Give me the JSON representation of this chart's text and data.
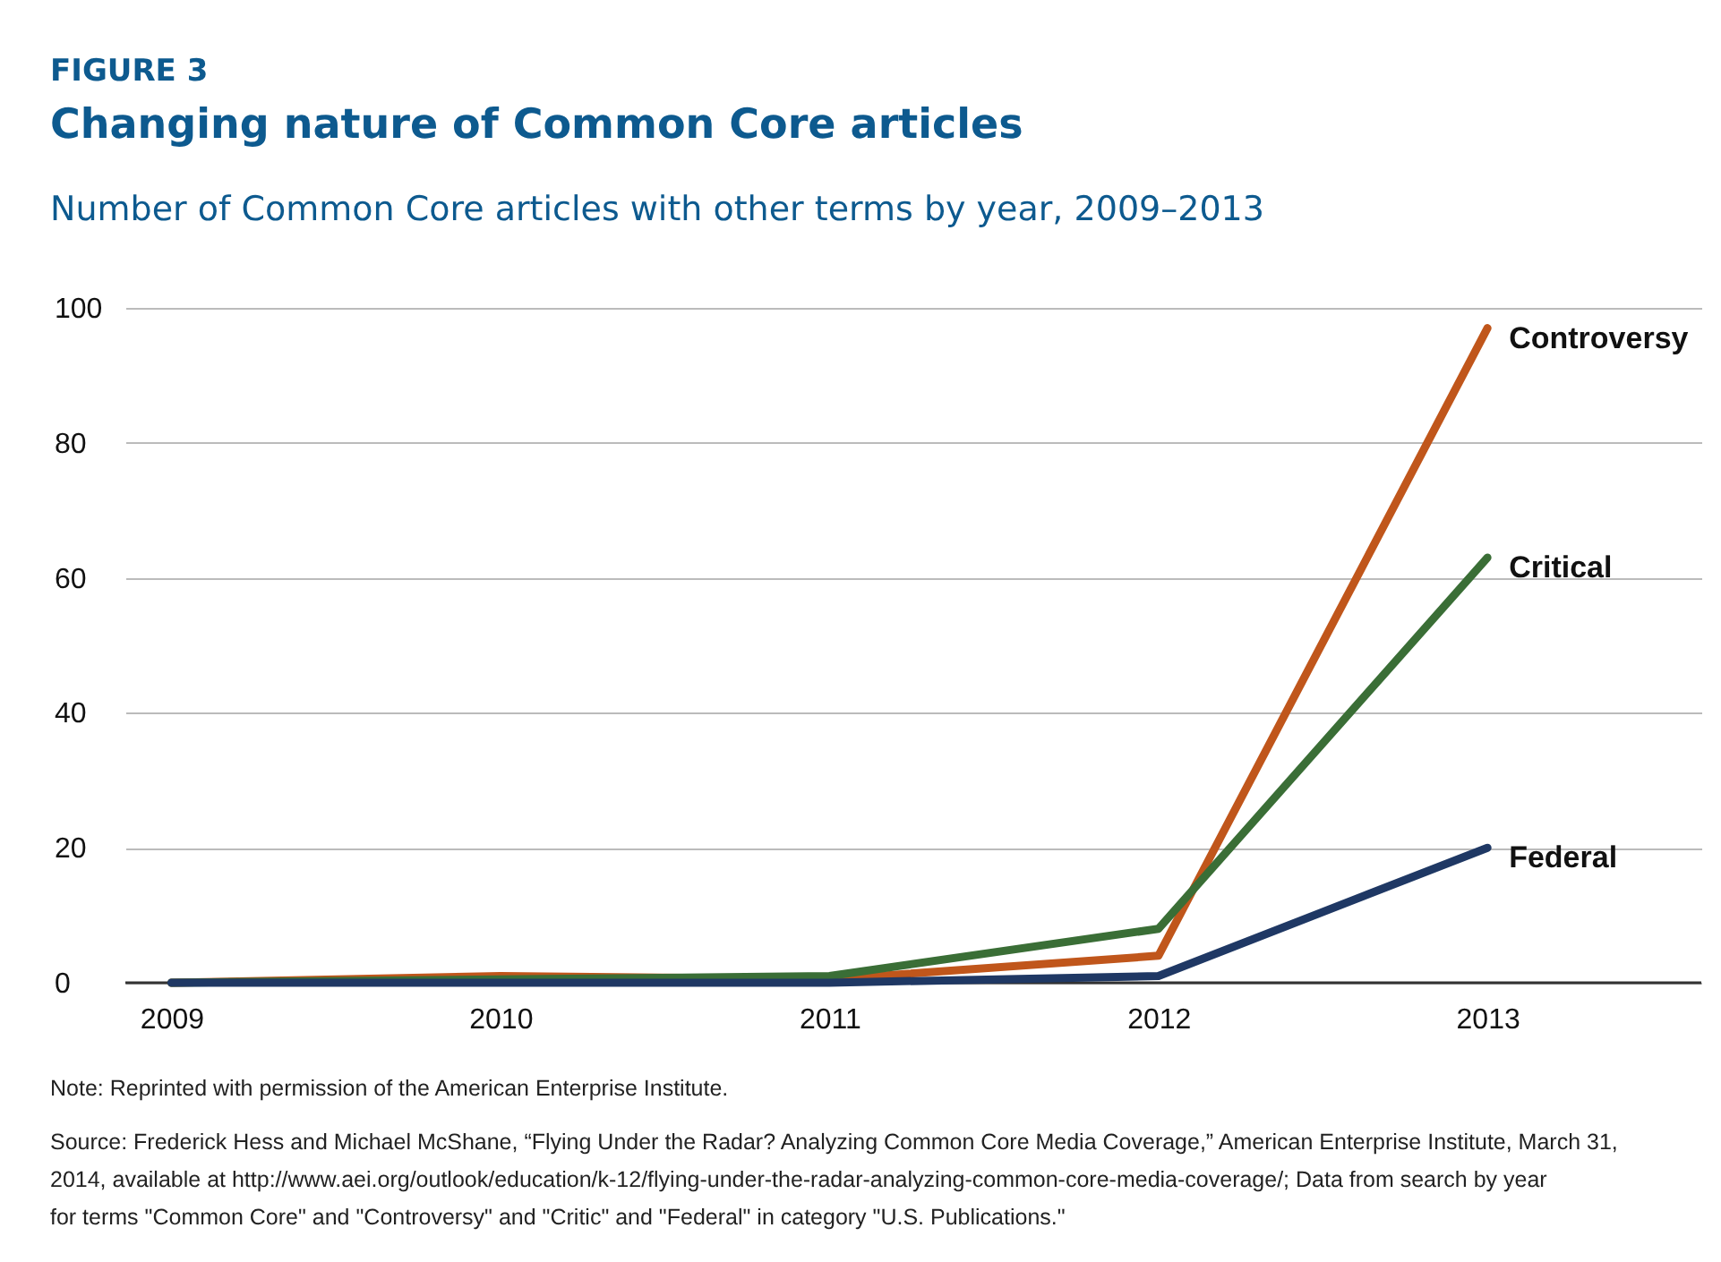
{
  "chart_data": {
    "type": "line",
    "title": "Changing nature of Common Core articles",
    "subtitle": "Number of Common Core articles with other terms by year, 2009–2013",
    "x": [
      2009,
      2010,
      2011,
      2012,
      2013
    ],
    "series": [
      {
        "name": "Controversy",
        "color": "#c0561b",
        "values": [
          0,
          1,
          0.5,
          4,
          97
        ]
      },
      {
        "name": "Critical",
        "color": "#3a6e36",
        "values": [
          0,
          0.5,
          1,
          8,
          63
        ]
      },
      {
        "name": "Federal",
        "color": "#1f3864",
        "values": [
          0,
          0,
          0,
          1,
          20
        ]
      }
    ],
    "xlim": [
      2008.86,
      2013.65
    ],
    "xticks": [
      2009,
      2010,
      2011,
      2012,
      2013
    ],
    "ylim": [
      0,
      100
    ],
    "yticks": [
      0,
      20,
      40,
      60,
      80,
      100
    ],
    "grid": "y",
    "legend": false,
    "marker": "none",
    "line_style": "solid",
    "annotations": [
      "FIGURE 3",
      "Note: Reprinted with permission of the American Enterprise Institute.",
      "Source: Frederick Hess and Michael McShane, “Flying Under the Radar? Analyzing Common Core Media Coverage,” American Enterprise Institute, March 31, 2014, available at http://www.aei.org/outlook/education/k-12/flying-under-the-radar-analyzing-common-core-media-coverage/; Data from search by year for terms \"Common Core\" and \"Controversy\" and \"Critic\" and \"Federal\" in category \"U.S. Publications.\""
    ]
  }
}
